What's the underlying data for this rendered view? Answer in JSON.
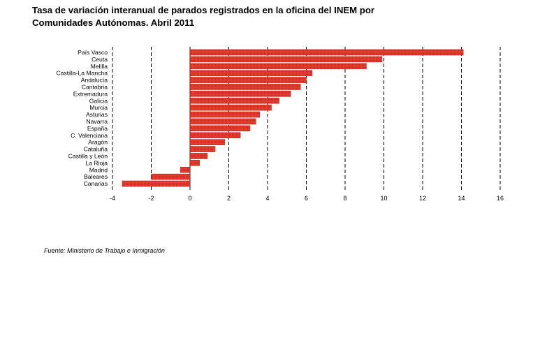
{
  "title_lines": [
    "Tasa de variación interanual de parados registrados en la oficina del INEM por",
    "Comunidades Autónomas. Abril 2011"
  ],
  "source": "Fuente: Ministerio de Trabajo e Inmigración",
  "colors": {
    "bar": "#e8392c",
    "bar_hatch": "#c62a20",
    "grid": "#000000"
  },
  "chart_data": {
    "type": "bar",
    "orientation": "horizontal",
    "categories": [
      "País Vasco",
      "Ceuta",
      "Melilla",
      "Castilla-La Mancha",
      "Andalucía",
      "Cantabria",
      "Extremadura",
      "Galicia",
      "Murcia",
      "Asturias",
      "Navarra",
      "España",
      "C. Valenciana",
      "Aragón",
      "Cataluña",
      "Castilla y León",
      "La Rioja",
      "Madrid",
      "Baleares",
      "Canarias"
    ],
    "values": [
      14.1,
      9.9,
      9.1,
      6.3,
      6.0,
      5.7,
      5.2,
      4.6,
      4.2,
      3.6,
      3.4,
      3.1,
      2.6,
      1.8,
      1.3,
      0.9,
      0.5,
      -0.5,
      -2.0,
      -3.5
    ],
    "xlim": [
      -4,
      16
    ],
    "xticks": [
      -4,
      -2,
      0,
      2,
      4,
      6,
      8,
      10,
      12,
      14,
      16
    ],
    "grid": "vertical dashed",
    "legend": "none"
  }
}
